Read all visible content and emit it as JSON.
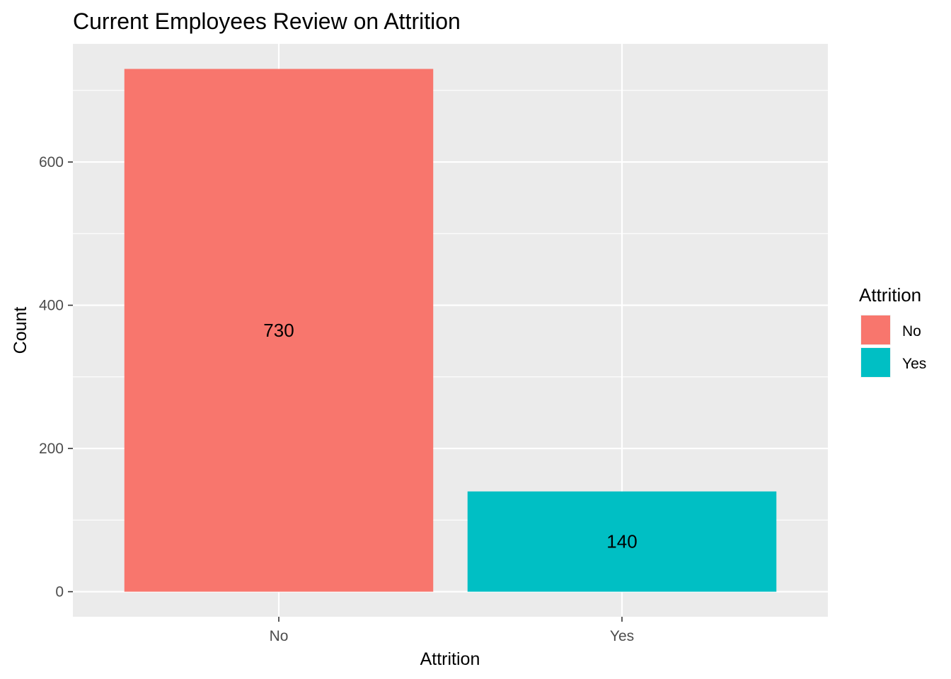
{
  "chart_data": {
    "type": "bar",
    "title": "Current Employees Review on Attrition",
    "xlabel": "Attrition",
    "ylabel": "Count",
    "categories": [
      "No",
      "Yes"
    ],
    "values": [
      730,
      140
    ],
    "data_labels": [
      "730",
      "140"
    ],
    "ylim": [
      -35,
      765
    ],
    "y_ticks": [
      0,
      200,
      400,
      600
    ],
    "y_tick_labels": [
      "0",
      "200",
      "400",
      "600"
    ],
    "grid": true,
    "legend": {
      "title": "Attrition",
      "placement": "right",
      "entries": [
        {
          "label": "No",
          "color": "#F8766D"
        },
        {
          "label": "Yes",
          "color": "#00BFC4"
        }
      ]
    },
    "colors": {
      "No": "#F8766D",
      "Yes": "#00BFC4",
      "panel_background": "#EBEBEB",
      "grid_line": "#FFFFFF"
    }
  }
}
